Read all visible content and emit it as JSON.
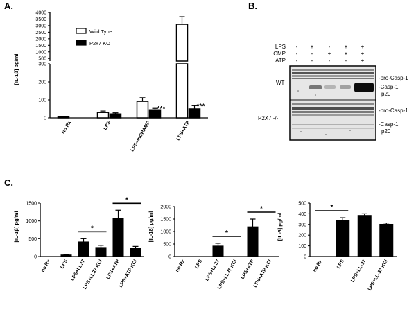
{
  "panel_letters": {
    "a": "A.",
    "b": "B.",
    "c": "C."
  },
  "chart_data": [
    {
      "id": "A",
      "type": "bar",
      "broken_axis": true,
      "lower_segment": [
        0,
        300
      ],
      "upper_segment": [
        300,
        4000
      ],
      "categories": [
        "No Rx",
        "LPS",
        "LPS+mCRAMP",
        "LPS+ATP"
      ],
      "series": [
        {
          "name": "Wild Type",
          "fill": "#ffffff",
          "values": [
            5,
            30,
            92,
            3100
          ],
          "errors": [
            3,
            8,
            20,
            580
          ]
        },
        {
          "name": "P2x7 KO",
          "fill": "#000000",
          "values": [
            0,
            22,
            45,
            50
          ],
          "errors": [
            0,
            6,
            8,
            18
          ]
        }
      ],
      "significance": [
        {
          "series": 1,
          "index": 2,
          "label": "***"
        },
        {
          "series": 1,
          "index": 3,
          "label": "***"
        }
      ],
      "ylabel": "[IL-1β] pg/ml",
      "yticks_lower": [
        0,
        100,
        200,
        300
      ],
      "yticks_upper": [
        500,
        1000,
        1500,
        2000,
        2500,
        3000,
        3500,
        4000
      ],
      "legend_position": "top-center"
    },
    {
      "id": "C1",
      "type": "bar",
      "categories": [
        "no Rx",
        "LPS",
        "LPS+LL37",
        "LPS+LL37 KCl",
        "LPS+ATP",
        "LPS+ATP KCl"
      ],
      "values": [
        0,
        45,
        410,
        255,
        1070,
        235
      ],
      "errors": [
        0,
        15,
        90,
        60,
        230,
        50
      ],
      "significance": [
        {
          "from": 2,
          "to": 3,
          "label": "*"
        },
        {
          "from": 4,
          "to": 5,
          "label": "*"
        }
      ],
      "ylabel": "[IL-1β] pg/ml",
      "ylim": [
        0,
        1500
      ],
      "yticks": [
        0,
        500,
        1000,
        1500
      ]
    },
    {
      "id": "C2",
      "type": "bar",
      "categories": [
        "no Rx",
        "LPS",
        "LPS+LL37",
        "LPS+LL37 KCl",
        "LPS+ATP",
        "LPS+ATP KCl"
      ],
      "values": [
        0,
        0,
        420,
        0,
        1190,
        0
      ],
      "errors": [
        0,
        0,
        110,
        0,
        310,
        0
      ],
      "significance": [
        {
          "from": 2,
          "to": 3,
          "label": "*"
        },
        {
          "from": 4,
          "to": 5,
          "label": "*"
        }
      ],
      "ylabel": "[IL-18] pg/ml",
      "ylim": [
        0,
        2000
      ],
      "yticks": [
        0,
        500,
        1000,
        1500,
        2000
      ]
    },
    {
      "id": "C3",
      "type": "bar",
      "categories": [
        "no Rx",
        "LPS",
        "LPS+LL-37",
        "LPS+LL-37 KCl"
      ],
      "values": [
        0,
        335,
        385,
        302
      ],
      "errors": [
        0,
        28,
        15,
        12
      ],
      "significance": [
        {
          "from": 0,
          "to": 1,
          "label": "*"
        }
      ],
      "ylabel": "[IL-6] pg/ml",
      "ylim": [
        0,
        500
      ],
      "yticks": [
        0,
        100,
        200,
        300,
        400,
        500
      ]
    }
  ],
  "blot": {
    "treatments": [
      {
        "label": "LPS",
        "signs": [
          "-",
          "+",
          "-",
          "+",
          "+"
        ]
      },
      {
        "label": "CMP",
        "signs": [
          "-",
          "-",
          "+",
          "+",
          "+"
        ]
      },
      {
        "label": "ATP",
        "signs": [
          "-",
          "-",
          "-",
          "-",
          "+"
        ]
      }
    ],
    "rows": [
      {
        "label": "WT",
        "bands": [
          "-pro-Casp-1",
          "-Casp-1",
          "p20"
        ]
      },
      {
        "label": "P2X7 -/-",
        "bands": [
          "-pro-Casp-1",
          "-Casp-1",
          "p20"
        ]
      }
    ]
  }
}
